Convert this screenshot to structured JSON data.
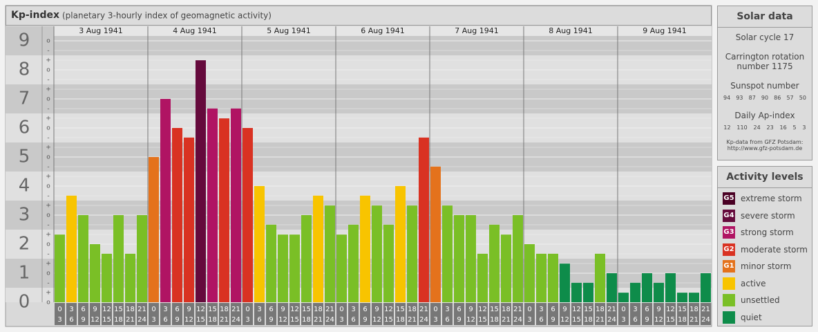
{
  "chart_data": {
    "type": "bar",
    "title": "Kp-index",
    "subtitle": "(planetary 3-hourly index of geomagnetic activity)",
    "days": [
      "3 Aug 1941",
      "4 Aug 1941",
      "5 Aug 1941",
      "6 Aug 1941",
      "7 Aug 1941",
      "8 Aug 1941",
      "9 Aug 1941"
    ],
    "interval_starts": [
      0,
      3,
      6,
      9,
      12,
      15,
      18,
      21
    ],
    "interval_ends": [
      3,
      6,
      9,
      12,
      15,
      18,
      21,
      24
    ],
    "values": [
      2.33,
      3.67,
      3,
      2,
      1.67,
      3,
      1.67,
      3,
      5,
      7,
      6,
      5.67,
      8.33,
      6.67,
      6.33,
      6.67,
      6,
      4,
      2.67,
      2.33,
      2.33,
      3,
      3.67,
      3.33,
      2.33,
      2.67,
      3.67,
      3.33,
      2.67,
      4,
      3.33,
      5.67,
      4.67,
      3.33,
      3,
      3,
      1.67,
      2.67,
      2.33,
      3,
      2,
      1.67,
      1.67,
      1.33,
      0.67,
      0.67,
      1.67,
      1,
      0.33,
      0.67,
      1,
      0.67,
      1,
      0.33,
      0.33,
      1
    ],
    "colors": [
      "#7abf26",
      "#f8c400",
      "#7abf26",
      "#7abf26",
      "#7abf26",
      "#7abf26",
      "#7abf26",
      "#7abf26",
      "#e4721c",
      "#b01463",
      "#d93222",
      "#d93222",
      "#650a3c",
      "#b01463",
      "#d93222",
      "#b01463",
      "#d93222",
      "#f8c400",
      "#7abf26",
      "#7abf26",
      "#7abf26",
      "#7abf26",
      "#f8c400",
      "#7abf26",
      "#7abf26",
      "#7abf26",
      "#f8c400",
      "#7abf26",
      "#7abf26",
      "#f8c400",
      "#7abf26",
      "#d93222",
      "#e4721c",
      "#7abf26",
      "#7abf26",
      "#7abf26",
      "#7abf26",
      "#7abf26",
      "#7abf26",
      "#7abf26",
      "#7abf26",
      "#7abf26",
      "#7abf26",
      "#0e8c4a",
      "#0e8c4a",
      "#0e8c4a",
      "#7abf26",
      "#0e8c4a",
      "#0e8c4a",
      "#0e8c4a",
      "#0e8c4a",
      "#0e8c4a",
      "#0e8c4a",
      "#0e8c4a",
      "#0e8c4a",
      "#0e8c4a"
    ],
    "ylim": [
      0,
      9
    ],
    "yticks": [
      0,
      1,
      2,
      3,
      4,
      5,
      6,
      7,
      8,
      9
    ],
    "minor_tick_labels": [
      "-",
      "o",
      "+"
    ],
    "grid": true
  },
  "solar_data": {
    "title": "Solar data",
    "cycle": "Solar cycle 17",
    "carrington": "Carrington rotation number 1175",
    "sunspot_title": "Sunspot number",
    "sunspot": [
      94,
      93,
      87,
      90,
      86,
      57,
      50
    ],
    "ap_title": "Daily Ap-index",
    "ap": [
      12,
      110,
      24,
      23,
      16,
      5,
      3
    ],
    "source": "Kp-data from GFZ Potsdam:",
    "url": "http://www.gfz-potsdam.de"
  },
  "activity_levels": {
    "title": "Activity levels",
    "items": [
      {
        "code": "G5",
        "label": "extreme storm",
        "color": "#4a0024"
      },
      {
        "code": "G4",
        "label": "severe storm",
        "color": "#650a3c"
      },
      {
        "code": "G3",
        "label": "strong storm",
        "color": "#b01463"
      },
      {
        "code": "G2",
        "label": "moderate storm",
        "color": "#d93222"
      },
      {
        "code": "G1",
        "label": "minor storm",
        "color": "#e4721c"
      },
      {
        "label": "active",
        "color": "#f8c400"
      },
      {
        "label": "unsettled",
        "color": "#7abf26"
      },
      {
        "label": "quiet",
        "color": "#0e8c4a"
      }
    ]
  }
}
